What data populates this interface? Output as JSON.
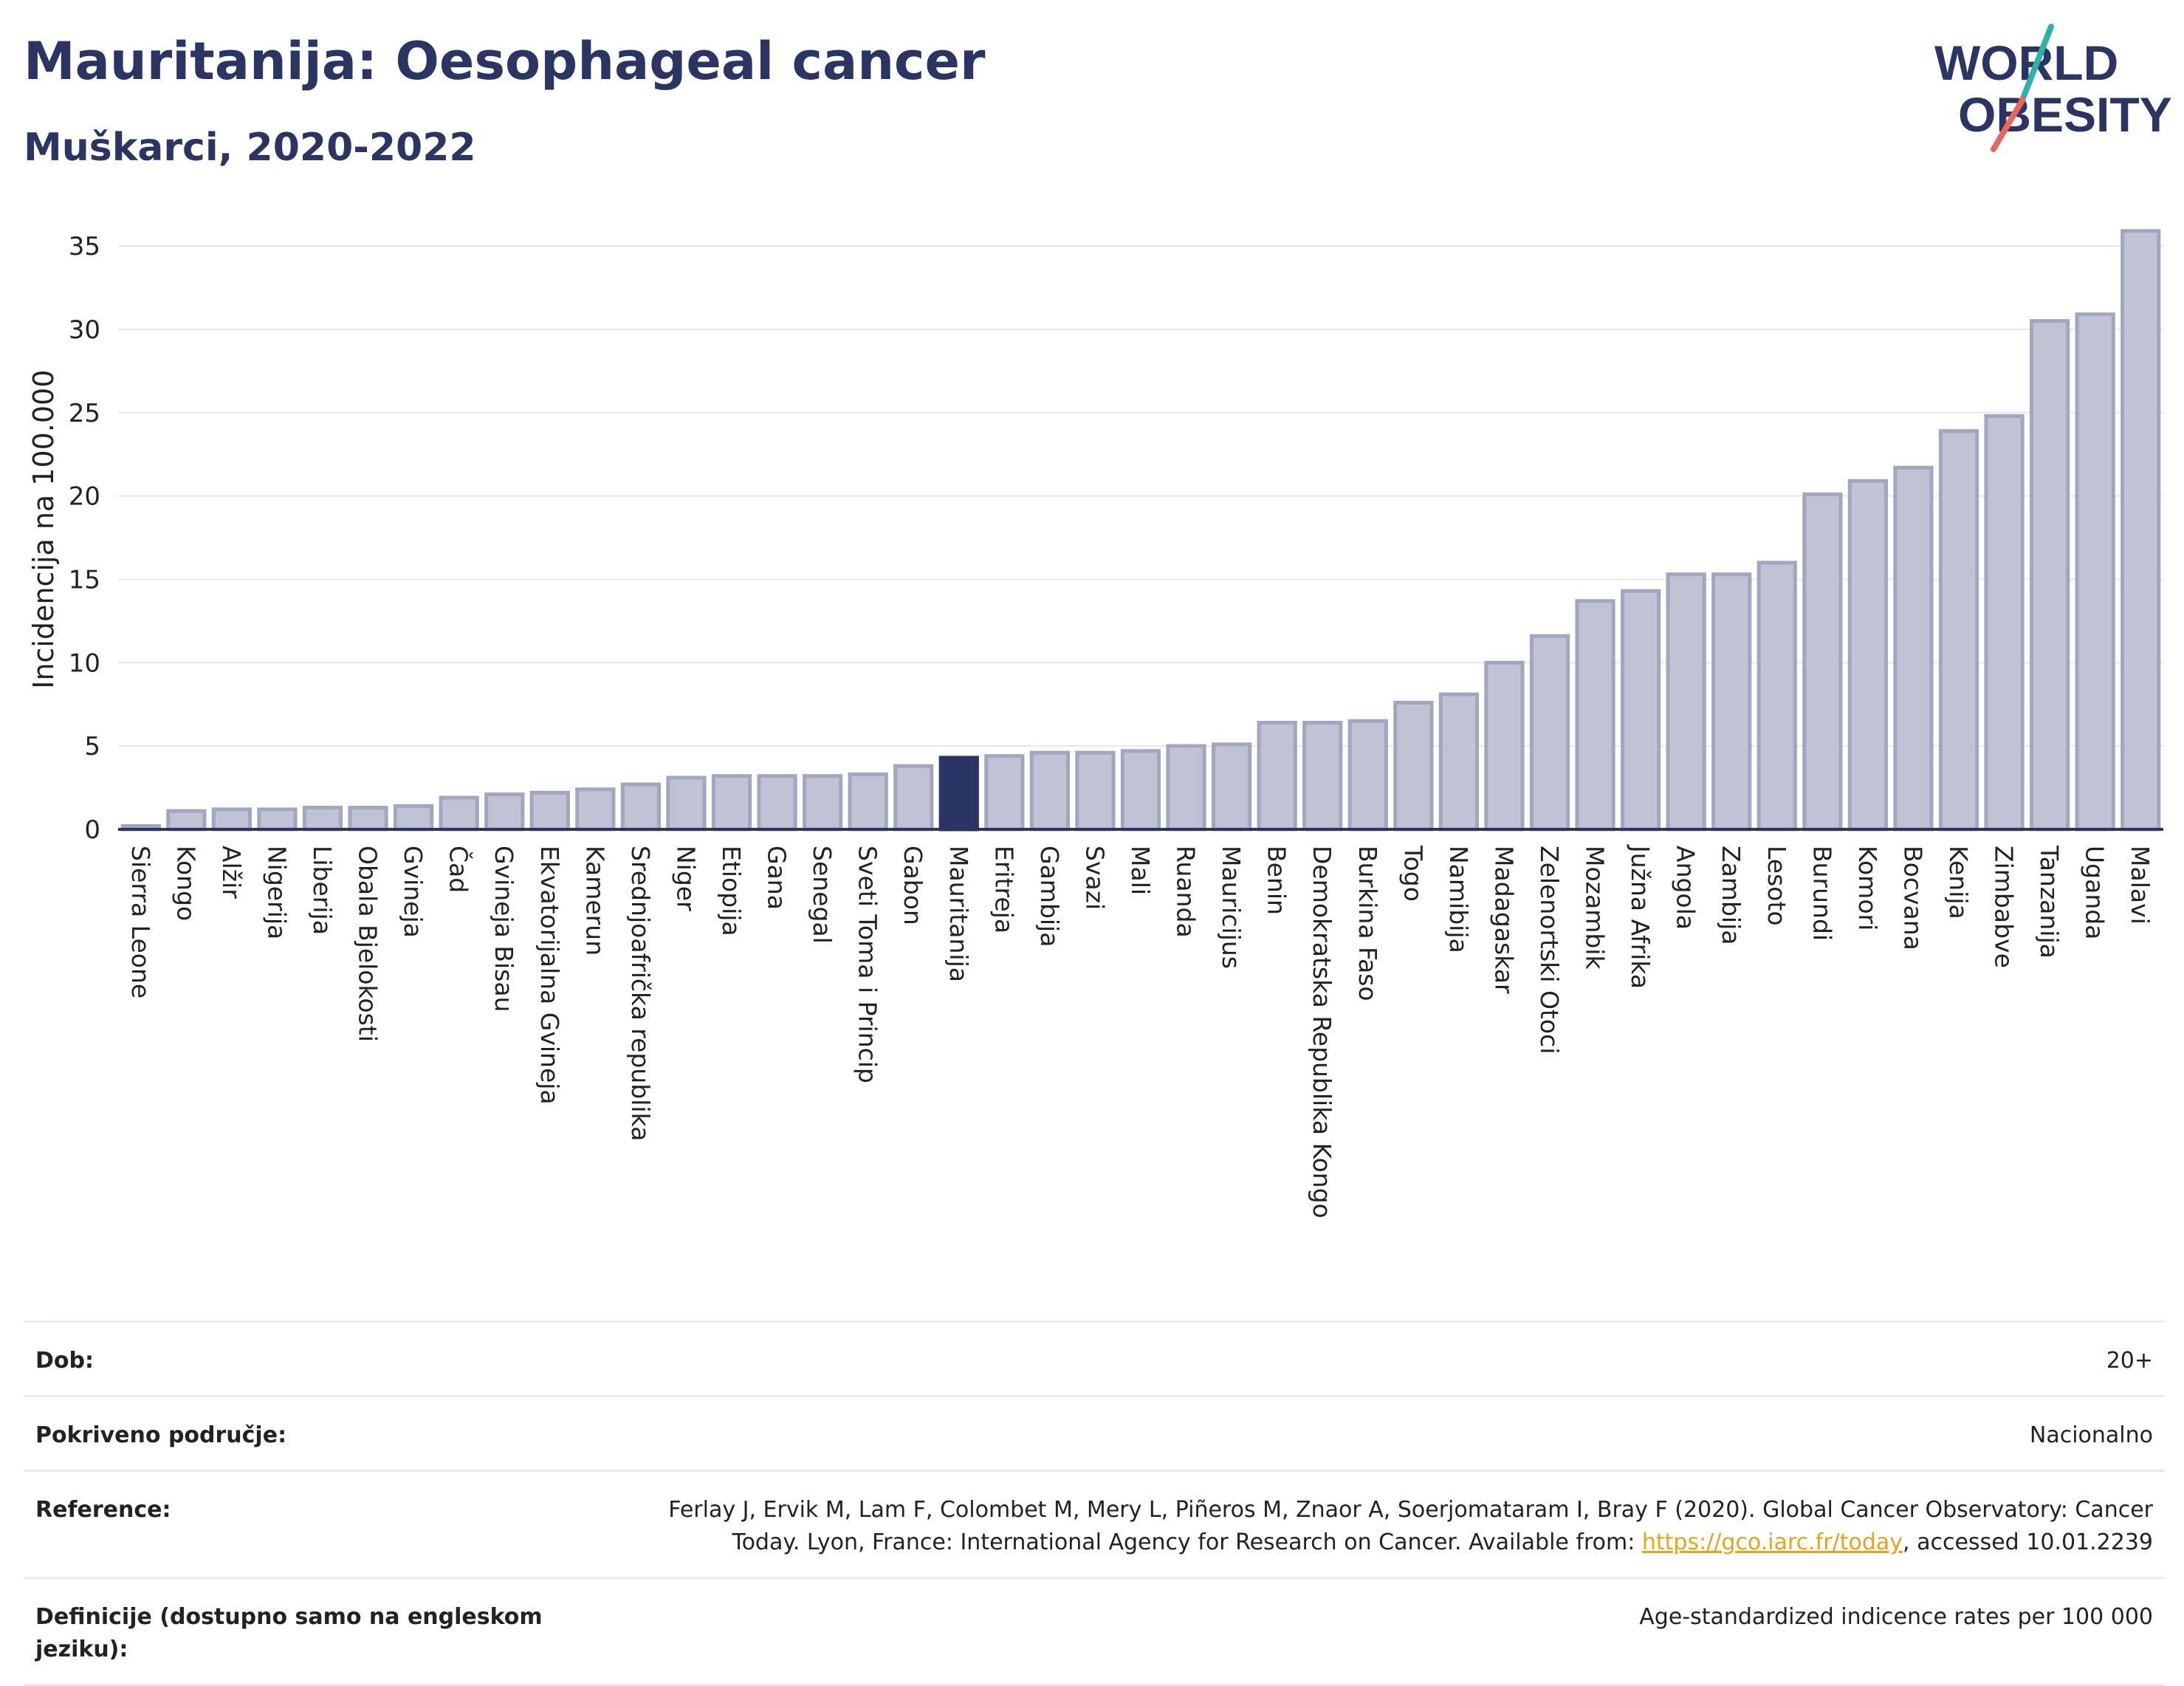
{
  "header": {
    "title": "Mauritanija: Oesophageal cancer",
    "subtitle": "Muškarci, 2020-2022"
  },
  "logo": {
    "line1": "W",
    "o_char": "O",
    "line1_rest": "RLD",
    "line2": "OBESITY",
    "accent_teal": "#2ab3a6",
    "accent_red": "#e8665a",
    "color": "#2a3563"
  },
  "colors": {
    "bar_default": "#bfc3d3",
    "bar_stroke": "#a2a7c0",
    "bar_highlight": "#2a3563",
    "grid": "#e6e8ef",
    "axis": "#2a3563"
  },
  "chart_data": {
    "type": "bar",
    "ylabel": "Incidencija na 100.000",
    "ylim": [
      0,
      36
    ],
    "yticks": [
      0,
      5,
      10,
      15,
      20,
      25,
      30,
      35
    ],
    "highlight": "Mauritanija",
    "categories": [
      "Sierra Leone",
      "Kongo",
      "Alžir",
      "Nigerija",
      "Liberija",
      "Obala Bjelokosti",
      "Gvineja",
      "Čad",
      "Gvineja Bisau",
      "Ekvatorijalna Gvineja",
      "Kamerun",
      "Srednjoafrička republika",
      "Niger",
      "Etiopija",
      "Gana",
      "Senegal",
      "Sveti Toma i Princip",
      "Gabon",
      "Mauritanija",
      "Eritreja",
      "Gambija",
      "Svazi",
      "Mali",
      "Ruanda",
      "Mauricijus",
      "Benin",
      "Demokratska Republika Kongo",
      "Burkina Faso",
      "Togo",
      "Namibija",
      "Madagaskar",
      "Zelenortski Otoci",
      "Mozambik",
      "Južna Afrika",
      "Angola",
      "Zambija",
      "Lesoto",
      "Burundi",
      "Komori",
      "Bocvana",
      "Kenija",
      "Zimbabve",
      "Tanzanija",
      "Uganda",
      "Malavi"
    ],
    "values": [
      0.2,
      1.1,
      1.2,
      1.2,
      1.3,
      1.3,
      1.4,
      1.9,
      2.1,
      2.2,
      2.4,
      2.7,
      3.1,
      3.2,
      3.2,
      3.2,
      3.3,
      3.8,
      4.3,
      4.4,
      4.6,
      4.6,
      4.7,
      5.0,
      5.1,
      6.4,
      6.4,
      6.5,
      7.6,
      8.1,
      10.0,
      11.6,
      13.7,
      14.3,
      15.3,
      15.3,
      16.0,
      20.1,
      20.9,
      21.7,
      23.9,
      24.8,
      30.5,
      30.9,
      35.9
    ]
  },
  "info": {
    "rows": [
      {
        "label": "Dob:",
        "value": "20+"
      },
      {
        "label": "Pokriveno područje:",
        "value": "Nacionalno"
      },
      {
        "label": "Reference:",
        "value_line1": "Ferlay J, Ervik M, Lam F, Colombet M, Mery L, Piñeros M, Znaor A, Soerjomataram I, Bray F (2020). Global Cancer Observatory: Cancer",
        "value_line2_pre": "Today. Lyon, France: International Agency for Research on Cancer. Available from: ",
        "link": "https://gco.iarc.fr/today",
        "value_line2_post": ", accessed 10.01.2239"
      },
      {
        "label": "Definicije (dostupno samo na engleskom jeziku):",
        "value": "Age-standardized indicence rates per 100 000"
      }
    ]
  }
}
